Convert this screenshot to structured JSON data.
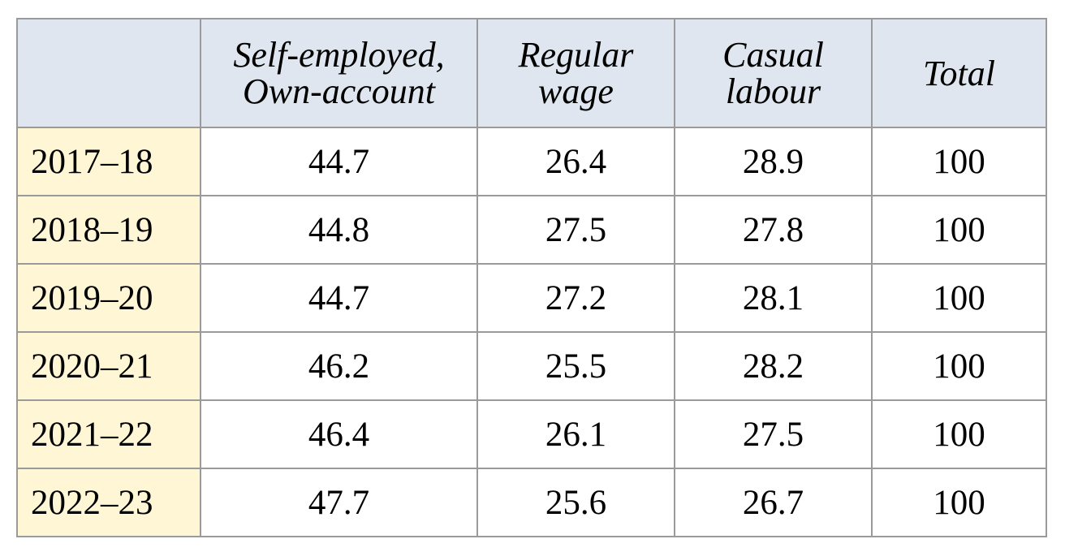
{
  "table": {
    "columns": [
      {
        "key": "self_employed",
        "lines": [
          "Self-employed,",
          "Own-account"
        ]
      },
      {
        "key": "regular_wage",
        "lines": [
          "Regular",
          "wage"
        ]
      },
      {
        "key": "casual_labour",
        "lines": [
          "Casual",
          "labour"
        ]
      },
      {
        "key": "total",
        "lines": [
          "Total"
        ]
      }
    ],
    "rows": [
      {
        "year": "2017–18",
        "values": [
          "44.7",
          "26.4",
          "28.9",
          "100"
        ]
      },
      {
        "year": "2018–19",
        "values": [
          "44.8",
          "27.5",
          "27.8",
          "100"
        ]
      },
      {
        "year": "2019–20",
        "values": [
          "44.7",
          "27.2",
          "28.1",
          "100"
        ]
      },
      {
        "year": "2020–21",
        "values": [
          "46.2",
          "25.5",
          "28.2",
          "100"
        ]
      },
      {
        "year": "2021–22",
        "values": [
          "46.4",
          "26.1",
          "27.5",
          "100"
        ]
      },
      {
        "year": "2022–23",
        "values": [
          "47.7",
          "25.6",
          "26.7",
          "100"
        ]
      }
    ]
  },
  "colors": {
    "header_bg": "#dfe6ef",
    "year_bg": "#fff6d5",
    "border": "#9a9a9a"
  }
}
